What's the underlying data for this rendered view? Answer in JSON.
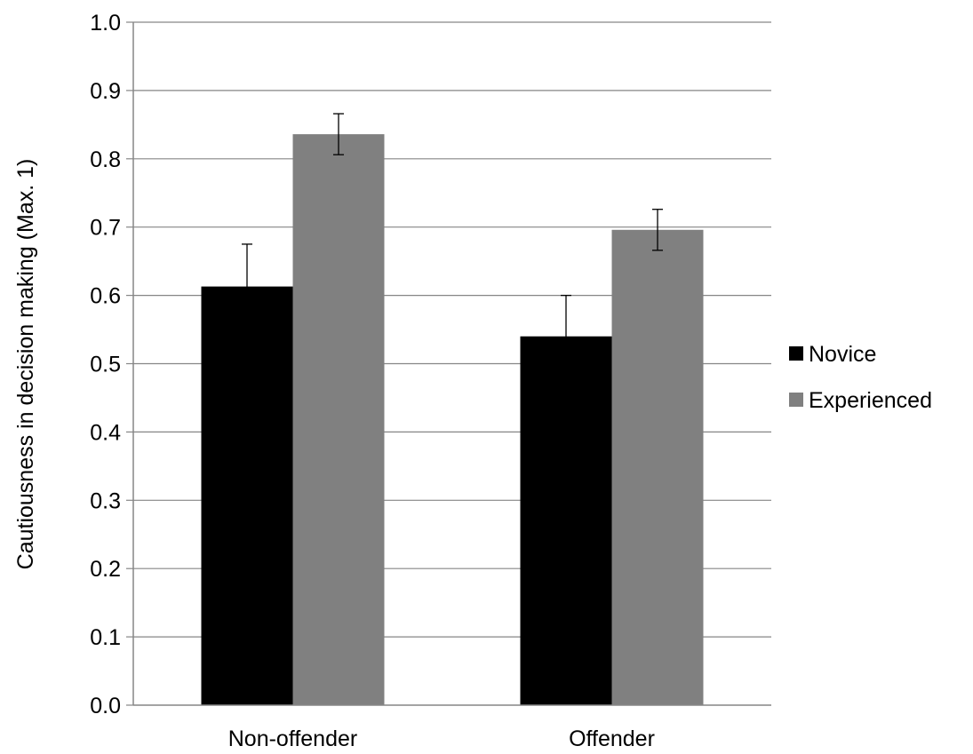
{
  "chart_data": {
    "type": "bar",
    "title": "",
    "xlabel": "",
    "ylabel": "Cautiousness in decision making (Max.  1)",
    "categories": [
      "Non-offender",
      "Offender"
    ],
    "series": [
      {
        "name": "Novice",
        "values": [
          0.613,
          0.54
        ],
        "error": [
          0.062,
          0.06
        ],
        "color": "#000000"
      },
      {
        "name": "Experienced",
        "values": [
          0.836,
          0.696
        ],
        "error": [
          0.03,
          0.03
        ],
        "color": "#808080"
      }
    ],
    "ylim": [
      0,
      1.0
    ],
    "yticks": [
      "0.0",
      "0.1",
      "0.2",
      "0.3",
      "0.4",
      "0.5",
      "0.6",
      "0.7",
      "0.8",
      "0.9",
      "1.0"
    ],
    "grid": true,
    "legend_position": "right"
  }
}
